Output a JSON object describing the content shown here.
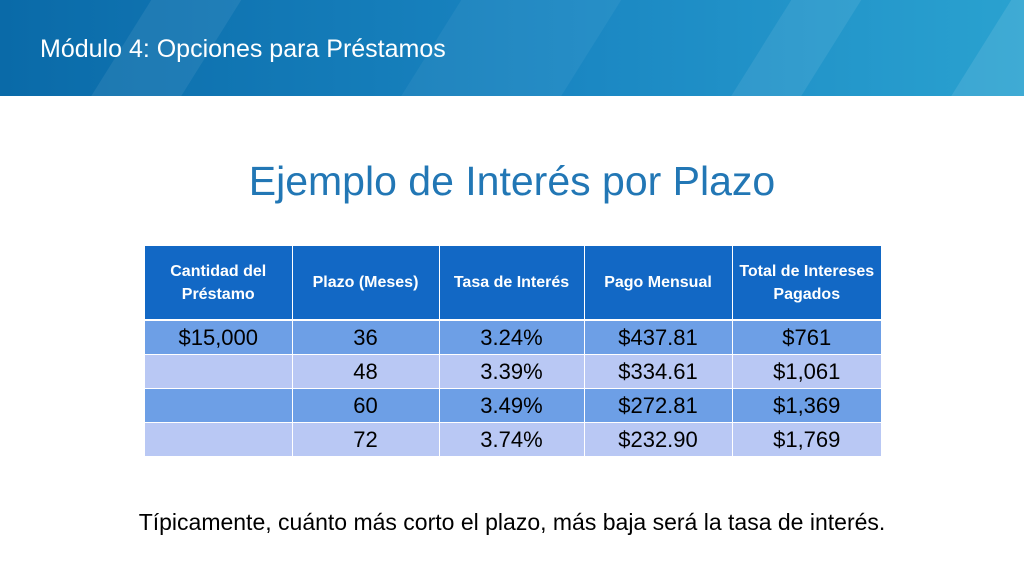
{
  "header": {
    "module_title": "Módulo 4: Opciones para Préstamos"
  },
  "slide": {
    "title": "Ejemplo de Interés por Plazo"
  },
  "table": {
    "columns": [
      "Cantidad del Préstamo",
      "Plazo (Meses)",
      "Tasa de Interés",
      "Pago Mensual",
      "Total de Intereses Pagados"
    ],
    "rows": [
      [
        "$15,000",
        "36",
        "3.24%",
        "$437.81",
        "$761"
      ],
      [
        "",
        "48",
        "3.39%",
        "$334.61",
        "$1,061"
      ],
      [
        "",
        "60",
        "3.49%",
        "$272.81",
        "$1,369"
      ],
      [
        "",
        "72",
        "3.74%",
        "$232.90",
        "$1,769"
      ]
    ]
  },
  "footer": {
    "caption": "Típicamente, cuánto más corto el plazo, más baja será la tasa de interés."
  },
  "colors": {
    "banner": "#1a86c2",
    "title_text": "#2277b5",
    "table_header": "#1268c5",
    "row_dark": "#6d9fe6",
    "row_light": "#b9c8f4"
  }
}
